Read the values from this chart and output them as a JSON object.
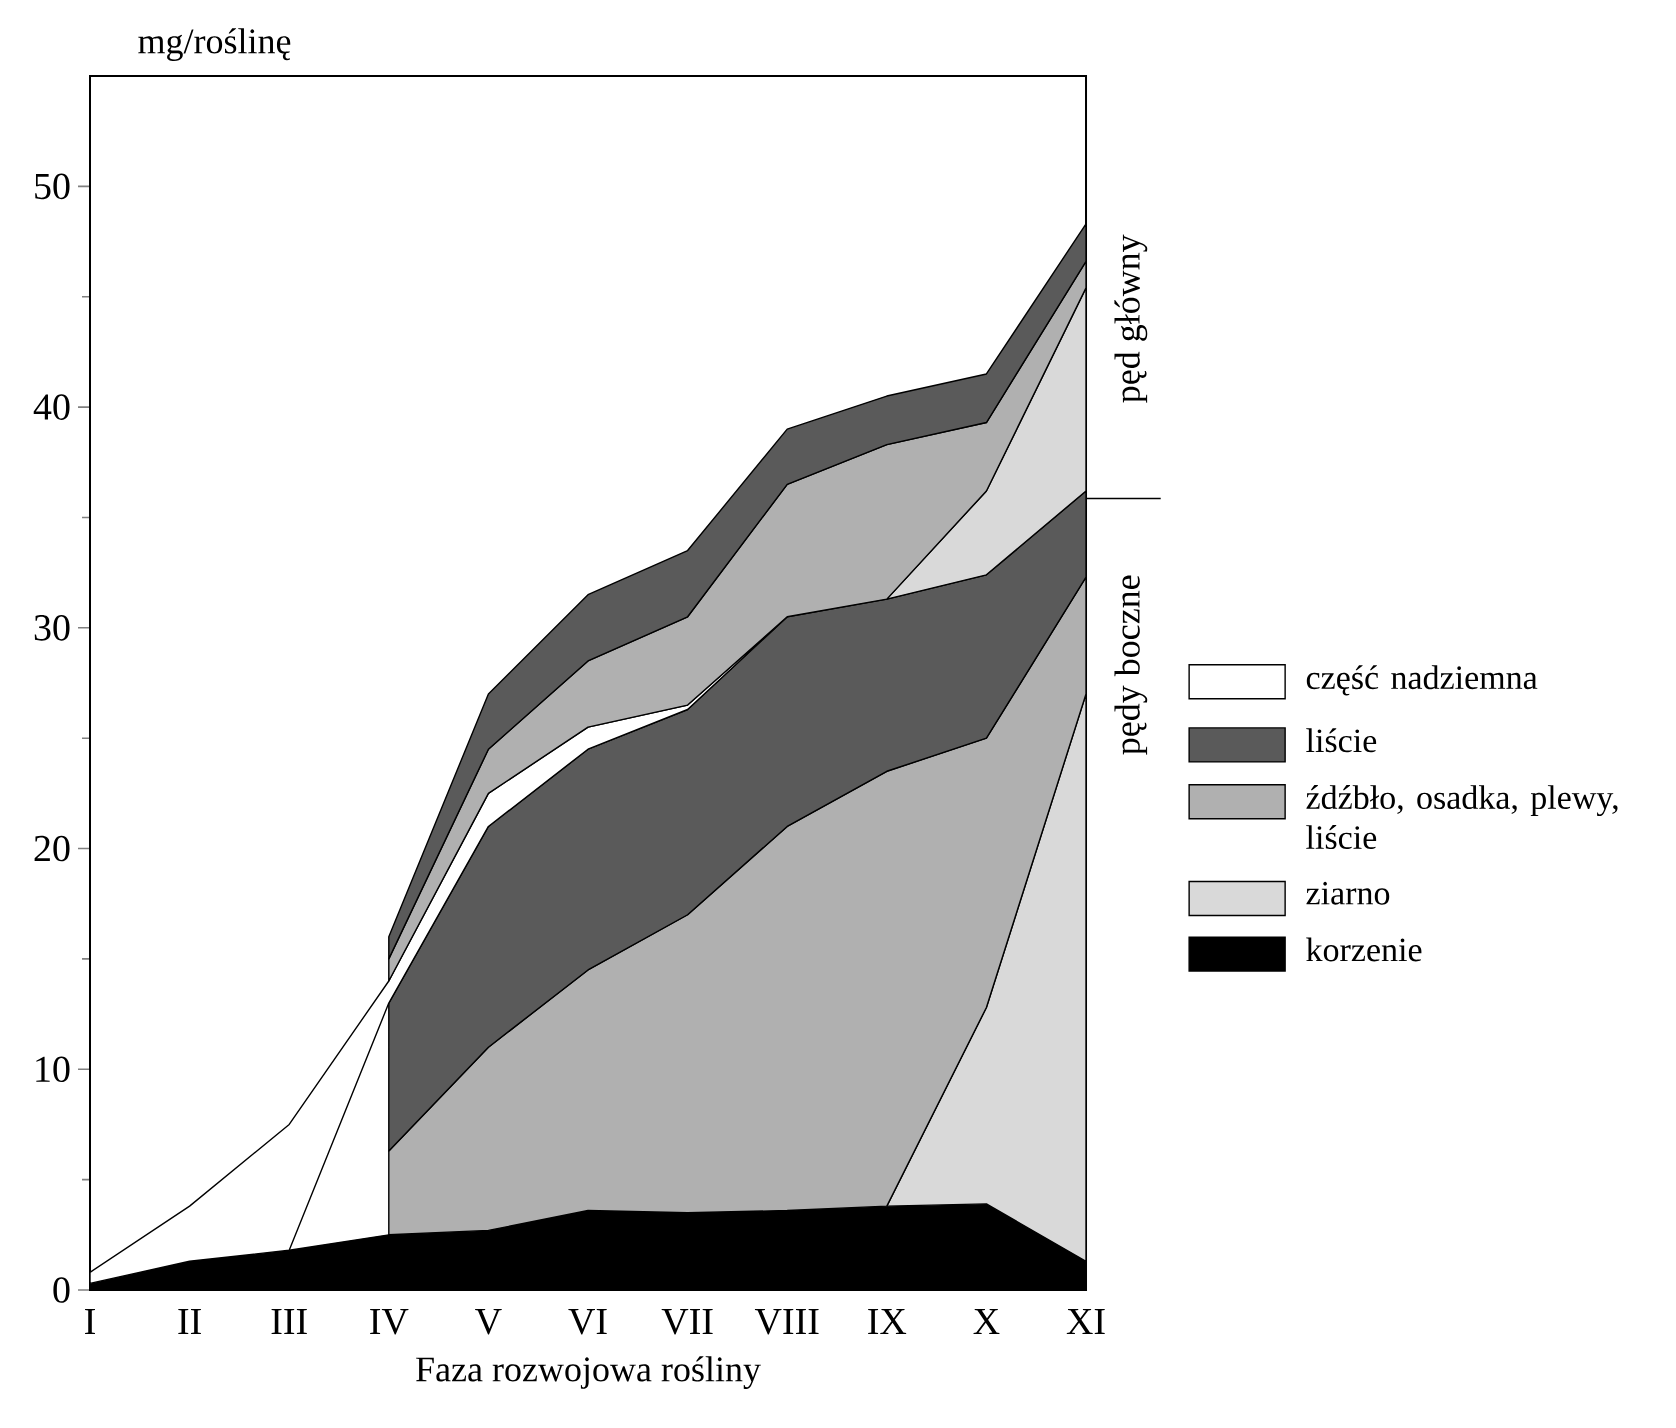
{
  "chart_data": {
    "type": "area",
    "stacked": true,
    "xlabel": "Faza rozwojowa rośliny",
    "ylabel": "mg/roślinę",
    "categories": [
      "I",
      "II",
      "III",
      "IV",
      "V",
      "VI",
      "VII",
      "VIII",
      "IX",
      "X",
      "XI"
    ],
    "ylim": [
      0,
      55
    ],
    "yticks": [
      0,
      10,
      20,
      30,
      40,
      50
    ],
    "legend": "right",
    "annotations": [
      "pęd główny",
      "pędy boczne"
    ],
    "series": [
      {
        "name": "korzenie",
        "color": "#000000",
        "values": [
          0.3,
          1.3,
          1.8,
          2.5,
          2.7,
          3.6,
          3.5,
          3.6,
          3.8,
          3.9,
          1.3
        ]
      },
      {
        "name": "ziarno",
        "color": "#d9d9d9",
        "values": [
          null,
          null,
          null,
          null,
          null,
          null,
          null,
          null,
          0,
          8.9,
          25.7
        ]
      },
      {
        "name": "źdźbło, osadka, plewy, liście",
        "color": "#b0b0b0",
        "values": [
          null,
          null,
          null,
          3.8,
          8.3,
          10.9,
          13.5,
          17.4,
          19.7,
          12.2,
          5.3
        ]
      },
      {
        "name": "liście",
        "color": "#5a5a5a",
        "values": [
          null,
          null,
          null,
          6.7,
          10,
          10,
          9.3,
          9.5,
          7.8,
          7.4,
          3.9
        ]
      },
      {
        "name": "część nadziemna",
        "color": "#ffffff",
        "values": [
          0.5,
          2.5,
          5.7,
          1,
          1.5,
          1,
          0.2,
          0,
          null,
          null,
          null
        ]
      },
      {
        "color": "#d9d9d9",
        "values": [
          null,
          null,
          null,
          null,
          null,
          null,
          null,
          null,
          0,
          3.8,
          9.2
        ]
      },
      {
        "color": "#b0b0b0",
        "values": [
          null,
          null,
          null,
          1,
          2,
          3,
          4,
          6,
          7,
          3.1,
          1.2
        ]
      },
      {
        "color": "#5a5a5a",
        "values": [
          null,
          null,
          null,
          1,
          2.5,
          3,
          3,
          2.5,
          2.2,
          2.2,
          1.7
        ]
      }
    ]
  }
}
